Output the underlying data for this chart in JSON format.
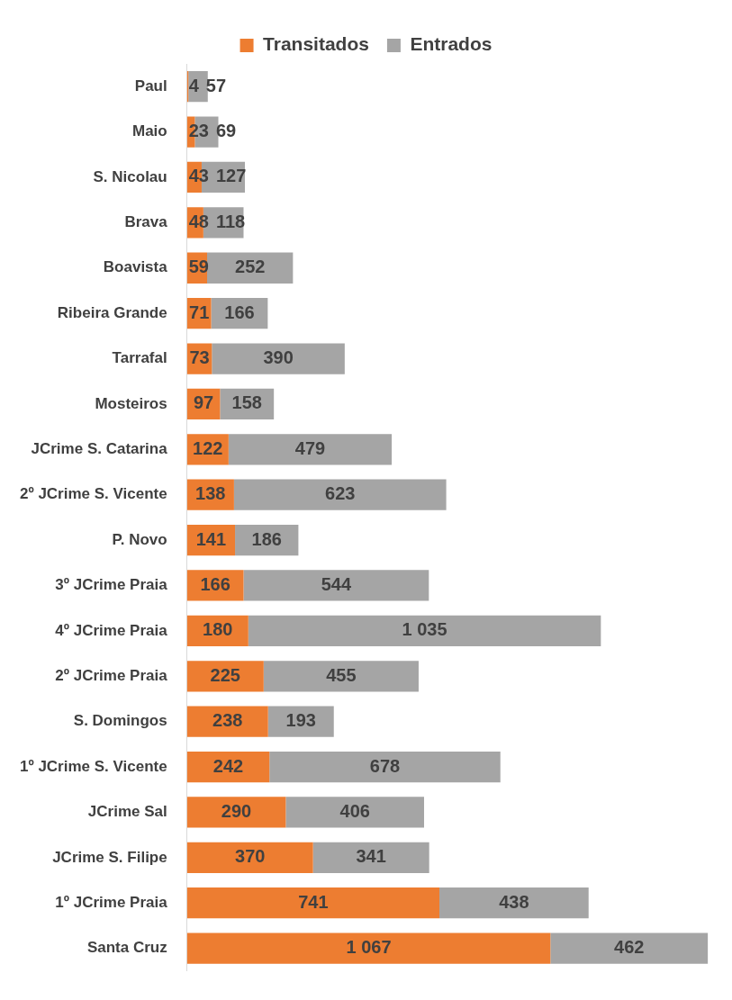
{
  "chart_data": {
    "type": "bar",
    "orientation": "horizontal",
    "stacked": true,
    "legend": "top",
    "tick_labels": "y",
    "categories": [
      "Paul",
      "Maio",
      "S. Nicolau",
      "Brava",
      "Boavista",
      "Ribeira Grande",
      "Tarrafal",
      "Mosteiros",
      "JCrime S. Catarina",
      "2º JCrime S. Vicente",
      "P. Novo",
      "3º JCrime Praia",
      "4º JCrime Praia",
      "2º JCrime Praia",
      "S. Domingos",
      "1º JCrime S. Vicente",
      "JCrime Sal",
      "JCrime S. Filipe",
      "1º JCrime Praia",
      "Santa Cruz"
    ],
    "series": [
      {
        "name": "Transitados",
        "color": "#ed7d31",
        "values": [
          4,
          23,
          43,
          48,
          59,
          71,
          73,
          97,
          122,
          138,
          141,
          166,
          180,
          225,
          238,
          242,
          290,
          370,
          741,
          1067
        ],
        "value_labels": [
          "4",
          "23",
          "43",
          "48",
          "59",
          "71",
          "73",
          "97",
          "122",
          "138",
          "141",
          "166",
          "180",
          "225",
          "238",
          "242",
          "290",
          "370",
          "741",
          "1 067"
        ]
      },
      {
        "name": "Entrados",
        "color": "#a5a5a5",
        "values": [
          57,
          69,
          127,
          118,
          252,
          166,
          390,
          158,
          479,
          623,
          186,
          544,
          1035,
          455,
          193,
          678,
          406,
          341,
          438,
          462
        ],
        "value_labels": [
          "57",
          "69",
          "127",
          "118",
          "252",
          "166",
          "390",
          "158",
          "479",
          "623",
          "186",
          "544",
          "1 035",
          "455",
          "193",
          "678",
          "406",
          "341",
          "438",
          "462"
        ]
      }
    ]
  }
}
